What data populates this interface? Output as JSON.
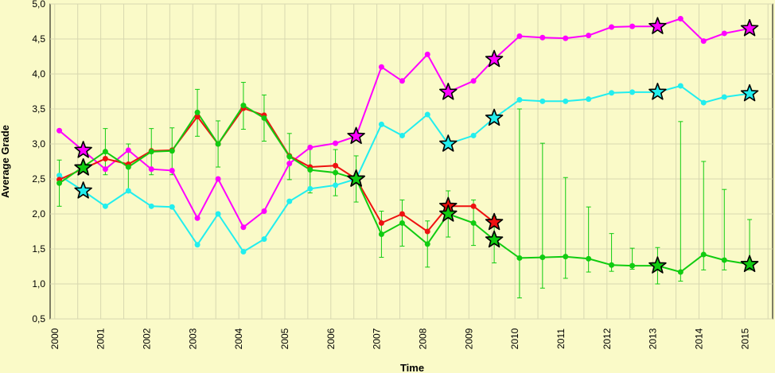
{
  "chart_data": {
    "type": "line",
    "title": "",
    "xlabel": "Time",
    "ylabel": "Average Grade",
    "ylim": [
      0.5,
      5.0
    ],
    "xlim": [
      1999.9,
      2015.6
    ],
    "ytick_labels": [
      "0,5",
      "1,0",
      "1,5",
      "2,0",
      "2,5",
      "3,0",
      "3,5",
      "4,0",
      "4,5",
      "5,0"
    ],
    "xtick_labels": [
      "2000",
      "2001",
      "2002",
      "2003",
      "2004",
      "2005",
      "2006",
      "2007",
      "2008",
      "2009",
      "2010",
      "2011",
      "2012",
      "2013",
      "2014",
      "2015"
    ],
    "grid": true,
    "legend": "none",
    "background": "#fafac8",
    "series": [
      {
        "color": "#ff00ff",
        "x": [
          2000.1,
          2001.1,
          2001.6,
          2002.1,
          2002.55,
          2003.1,
          2003.55,
          2004.1,
          2004.55,
          2005.1,
          2005.55,
          2006.1,
          2006.55,
          2007.1,
          2007.55,
          2008.1,
          2008.55,
          2009.1,
          2009.55,
          2010.1,
          2010.6,
          2011.1,
          2011.6,
          2012.1,
          2012.55,
          2013.1,
          2013.6,
          2014.1,
          2014.55,
          2015.1
        ],
        "values": [
          3.19,
          2.64,
          2.91,
          2.64,
          2.62,
          1.94,
          2.5,
          1.81,
          2.04,
          2.72,
          2.95,
          3.01,
          3.11,
          4.1,
          3.9,
          4.28,
          3.74,
          3.9,
          4.21,
          4.54,
          4.52,
          4.51,
          4.55,
          4.67,
          4.68,
          4.68,
          4.79,
          4.47,
          4.58,
          4.65
        ],
        "star_x": [
          2000.62,
          2006.55,
          2008.55,
          2009.55,
          2013.1,
          2015.1
        ],
        "star_y": [
          2.91,
          3.11,
          3.74,
          4.21,
          4.68,
          4.65
        ]
      },
      {
        "color": "#22eeee",
        "x": [
          2000.1,
          2000.62,
          2001.1,
          2001.6,
          2002.1,
          2002.55,
          2003.1,
          2003.55,
          2004.1,
          2004.55,
          2005.1,
          2005.55,
          2006.1,
          2006.55,
          2007.1,
          2007.55,
          2008.1,
          2008.55,
          2009.1,
          2009.55,
          2010.1,
          2010.6,
          2011.1,
          2011.6,
          2012.1,
          2012.55,
          2013.1,
          2013.6,
          2014.1,
          2014.55,
          2015.1
        ],
        "values": [
          2.55,
          2.33,
          2.11,
          2.33,
          2.11,
          2.1,
          1.56,
          2.0,
          1.46,
          1.64,
          2.18,
          2.36,
          2.41,
          2.5,
          3.28,
          3.12,
          3.42,
          3.0,
          3.12,
          3.37,
          3.63,
          3.61,
          3.61,
          3.64,
          3.73,
          3.74,
          3.74,
          3.83,
          3.59,
          3.67,
          3.72
        ],
        "star_x": [
          2000.62,
          2006.55,
          2008.55,
          2009.55,
          2013.1,
          2015.1
        ],
        "star_y": [
          2.33,
          2.5,
          3.0,
          3.37,
          3.74,
          3.72
        ]
      },
      {
        "color": "#ee1111",
        "x": [
          2000.1,
          2001.1,
          2001.6,
          2002.1,
          2002.55,
          2003.1,
          2003.55,
          2004.1,
          2004.55,
          2005.1,
          2005.55,
          2006.1,
          2006.55,
          2007.1,
          2007.55,
          2008.1,
          2008.55,
          2009.1,
          2009.55
        ],
        "values": [
          2.49,
          2.79,
          2.71,
          2.9,
          2.91,
          3.39,
          3.0,
          3.51,
          3.41,
          2.83,
          2.67,
          2.69,
          2.5,
          1.87,
          2.0,
          1.75,
          2.11,
          2.11,
          1.88
        ],
        "star_x": [
          2000.62,
          2006.55,
          2008.55,
          2009.55
        ],
        "star_y": [
          2.66,
          2.5,
          2.11,
          1.88
        ]
      },
      {
        "color": "#11cc11",
        "x": [
          2000.1,
          2001.1,
          2001.6,
          2002.1,
          2002.55,
          2003.1,
          2003.55,
          2004.1,
          2004.55,
          2005.1,
          2005.55,
          2006.1,
          2006.55,
          2007.1,
          2007.55,
          2008.1,
          2008.55,
          2009.1,
          2009.55,
          2010.1,
          2010.6,
          2011.1,
          2011.6,
          2012.1,
          2012.55,
          2013.1,
          2013.6,
          2014.1,
          2014.55,
          2015.1
        ],
        "values": [
          2.44,
          2.89,
          2.67,
          2.89,
          2.9,
          3.45,
          3.0,
          3.55,
          3.37,
          2.82,
          2.63,
          2.59,
          2.5,
          1.71,
          1.87,
          1.57,
          2.0,
          1.87,
          1.63,
          1.37,
          1.38,
          1.39,
          1.36,
          1.27,
          1.26,
          1.26,
          1.17,
          1.42,
          1.34,
          1.28
        ],
        "err_low": [
          2.11,
          2.56,
          2.34,
          2.56,
          2.56,
          3.11,
          2.67,
          3.21,
          3.04,
          2.49,
          2.3,
          2.26,
          2.17,
          1.38,
          1.54,
          1.24,
          1.67,
          1.55,
          1.3,
          0.8,
          0.94,
          1.08,
          1.17,
          1.18,
          1.21,
          1.0,
          1.04,
          1.2,
          1.2,
          1.2
        ],
        "err_high": [
          2.77,
          3.22,
          3.0,
          3.22,
          3.23,
          3.78,
          3.33,
          3.88,
          3.7,
          3.15,
          2.96,
          2.92,
          2.83,
          2.04,
          2.2,
          1.9,
          2.33,
          2.2,
          1.96,
          3.5,
          3.01,
          2.52,
          2.1,
          1.72,
          1.51,
          1.52,
          3.32,
          2.75,
          2.35,
          1.92
        ],
        "star_x": [
          2000.62,
          2006.55,
          2008.55,
          2009.55,
          2013.1,
          2015.1
        ],
        "star_y": [
          2.66,
          2.5,
          2.0,
          1.63,
          1.26,
          1.28
        ]
      }
    ]
  }
}
